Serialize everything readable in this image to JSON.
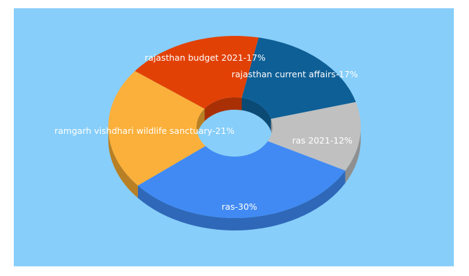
{
  "chart_data": {
    "type": "pie",
    "variant": "3d-donut",
    "background": "#87cefa",
    "slices": [
      {
        "label": "rajasthan current affairs",
        "value": 17,
        "text": "rajasthan current affairs-17%",
        "color": "#0e5f96",
        "side": "#0b4a75"
      },
      {
        "label": "ras 2021",
        "value": 12,
        "text": "ras 2021-12%",
        "color": "#c0c0c0",
        "side": "#8f8f8f"
      },
      {
        "label": "ras",
        "value": 30,
        "text": "ras-30%",
        "color": "#418af3",
        "side": "#2f68b8"
      },
      {
        "label": "ramgarh vishdhari wildlife sanctuary",
        "value": 21,
        "text": "ramgarh vishdhari wildlife sanctuary-21%",
        "color": "#fbb03b",
        "side": "#b97f24"
      },
      {
        "label": "rajasthan budget 2021",
        "value": 17,
        "text": "rajasthan budget 2021-17%",
        "color": "#e24106",
        "side": "#a93004"
      }
    ]
  }
}
